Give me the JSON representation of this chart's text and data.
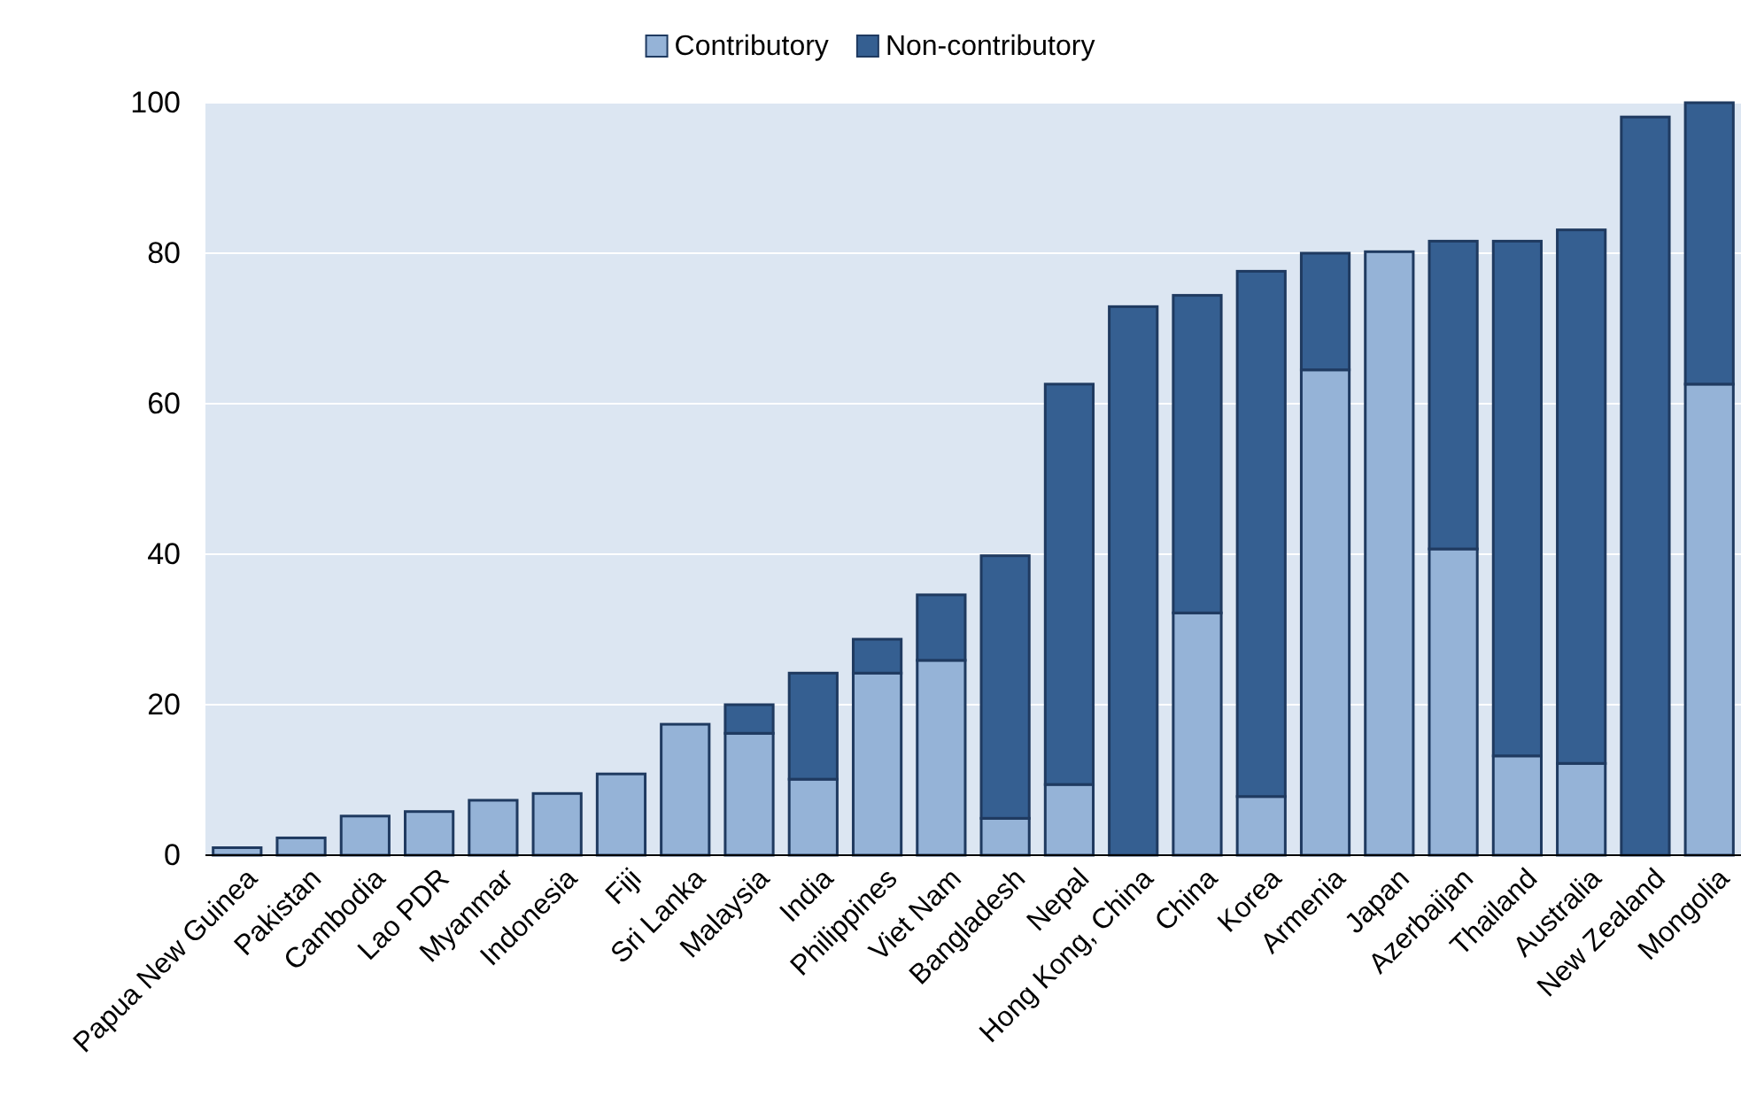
{
  "chart_data": {
    "type": "bar",
    "stacked": true,
    "categories": [
      "Papua New Guinea",
      "Pakistan",
      "Cambodia",
      "Lao PDR",
      "Myanmar",
      "Indonesia",
      "Fiji",
      "Sri Lanka",
      "Malaysia",
      "India",
      "Philippines",
      "Viet Nam",
      "Bangladesh",
      "Nepal",
      "Hong Kong, China",
      "China",
      "Korea",
      "Armenia",
      "Japan",
      "Azerbaijan",
      "Thailand",
      "Australia",
      "New Zealand",
      "Mongolia"
    ],
    "series": [
      {
        "name": "Contributory",
        "color": "#95b3d7",
        "values": [
          1.0,
          2.3,
          5.2,
          5.8,
          7.3,
          8.2,
          10.8,
          17.4,
          16.2,
          10.1,
          24.2,
          25.9,
          4.9,
          9.4,
          0,
          32.2,
          7.8,
          64.5,
          80.2,
          40.7,
          13.2,
          12.2,
          0,
          62.6
        ]
      },
      {
        "name": "Non-contributory",
        "color": "#355f91",
        "values": [
          0,
          0,
          0,
          0,
          0,
          0,
          0,
          0,
          3.8,
          14.1,
          4.5,
          8.7,
          34.9,
          53.2,
          72.9,
          42.2,
          69.8,
          15.5,
          0,
          40.9,
          68.4,
          70.9,
          98.1,
          37.4
        ]
      }
    ],
    "ylim": [
      0,
      100
    ],
    "yticks": [
      0,
      20,
      40,
      60,
      80,
      100
    ],
    "grid": "y",
    "legend": "top"
  }
}
